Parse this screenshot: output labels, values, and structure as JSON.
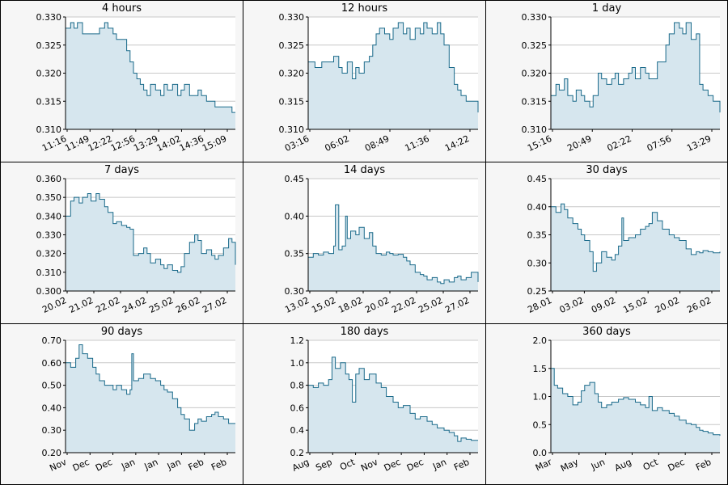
{
  "colors": {
    "line": "#1a6a8a",
    "fill": "#d6e6ee",
    "grid": "#c8c8c8",
    "panel_bg": "#f6f6f6",
    "plot_bg": "#ffffff"
  },
  "chart_data": [
    {
      "type": "area",
      "title": "4 hours",
      "ylim": [
        0.31,
        0.33
      ],
      "yticks": [
        "0.330",
        "0.325",
        "0.320",
        "0.315",
        "0.310"
      ],
      "yvals": [
        0.33,
        0.325,
        0.32,
        0.315,
        0.31
      ],
      "xticks": [
        "11:16",
        "11:49",
        "12:22",
        "12:56",
        "13:29",
        "14:02",
        "14:36",
        "15:09"
      ],
      "series": [
        {
          "x": [
            0,
            0.03,
            0.05,
            0.07,
            0.1,
            0.13,
            0.16,
            0.2,
            0.23,
            0.25,
            0.28,
            0.3,
            0.33,
            0.36,
            0.38,
            0.4,
            0.42,
            0.44,
            0.46,
            0.48,
            0.5,
            0.53,
            0.56,
            0.58,
            0.6,
            0.63,
            0.66,
            0.68,
            0.7,
            0.73,
            0.76,
            0.78,
            0.8,
            0.83,
            0.86,
            0.88,
            0.9,
            0.93,
            0.96,
            0.98,
            1.0
          ],
          "y": [
            0.328,
            0.329,
            0.328,
            0.329,
            0.327,
            0.327,
            0.327,
            0.328,
            0.329,
            0.328,
            0.327,
            0.326,
            0.326,
            0.324,
            0.322,
            0.32,
            0.319,
            0.318,
            0.317,
            0.316,
            0.318,
            0.317,
            0.316,
            0.318,
            0.317,
            0.318,
            0.316,
            0.317,
            0.318,
            0.316,
            0.316,
            0.317,
            0.316,
            0.315,
            0.315,
            0.314,
            0.314,
            0.314,
            0.314,
            0.313,
            0.313
          ]
        }
      ]
    },
    {
      "type": "area",
      "title": "12 hours",
      "ylim": [
        0.31,
        0.33
      ],
      "yticks": [
        "0.330",
        "0.325",
        "0.320",
        "0.315",
        "0.310"
      ],
      "yvals": [
        0.33,
        0.325,
        0.32,
        0.315,
        0.31
      ],
      "xticks": [
        "03:16",
        "06:02",
        "08:49",
        "11:36",
        "14:22"
      ],
      "series": [
        {
          "x": [
            0,
            0.04,
            0.08,
            0.12,
            0.15,
            0.18,
            0.2,
            0.23,
            0.26,
            0.28,
            0.3,
            0.33,
            0.36,
            0.38,
            0.4,
            0.42,
            0.45,
            0.48,
            0.5,
            0.53,
            0.56,
            0.58,
            0.6,
            0.63,
            0.66,
            0.68,
            0.7,
            0.73,
            0.76,
            0.78,
            0.8,
            0.83,
            0.86,
            0.88,
            0.9,
            0.93,
            0.96,
            1.0
          ],
          "y": [
            0.322,
            0.321,
            0.322,
            0.322,
            0.323,
            0.321,
            0.32,
            0.322,
            0.319,
            0.321,
            0.32,
            0.322,
            0.323,
            0.325,
            0.327,
            0.328,
            0.327,
            0.326,
            0.328,
            0.329,
            0.327,
            0.328,
            0.326,
            0.328,
            0.327,
            0.329,
            0.328,
            0.327,
            0.329,
            0.327,
            0.325,
            0.321,
            0.318,
            0.317,
            0.316,
            0.315,
            0.315,
            0.313
          ]
        }
      ]
    },
    {
      "type": "area",
      "title": "1 day",
      "ylim": [
        0.31,
        0.33
      ],
      "yticks": [
        "0.330",
        "0.325",
        "0.320",
        "0.315",
        "0.310"
      ],
      "yvals": [
        0.33,
        0.325,
        0.32,
        0.315,
        0.31
      ],
      "xticks": [
        "15:16",
        "20:49",
        "02:22",
        "07:56",
        "13:29"
      ],
      "series": [
        {
          "x": [
            0,
            0.03,
            0.05,
            0.08,
            0.1,
            0.13,
            0.15,
            0.18,
            0.2,
            0.23,
            0.25,
            0.28,
            0.3,
            0.33,
            0.36,
            0.38,
            0.4,
            0.43,
            0.46,
            0.48,
            0.5,
            0.53,
            0.56,
            0.58,
            0.6,
            0.63,
            0.66,
            0.68,
            0.7,
            0.73,
            0.76,
            0.78,
            0.8,
            0.83,
            0.86,
            0.88,
            0.9,
            0.93,
            0.96,
            1.0
          ],
          "y": [
            0.316,
            0.318,
            0.317,
            0.319,
            0.316,
            0.315,
            0.317,
            0.316,
            0.315,
            0.314,
            0.316,
            0.32,
            0.319,
            0.318,
            0.319,
            0.32,
            0.318,
            0.319,
            0.32,
            0.321,
            0.319,
            0.321,
            0.32,
            0.319,
            0.319,
            0.322,
            0.322,
            0.325,
            0.327,
            0.329,
            0.328,
            0.327,
            0.329,
            0.326,
            0.327,
            0.318,
            0.317,
            0.316,
            0.315,
            0.313
          ]
        }
      ]
    },
    {
      "type": "area",
      "title": "7 days",
      "ylim": [
        0.3,
        0.36
      ],
      "yticks": [
        "0.360",
        "0.350",
        "0.340",
        "0.330",
        "0.320",
        "0.310",
        "0.300"
      ],
      "yvals": [
        0.36,
        0.35,
        0.34,
        0.33,
        0.32,
        0.31,
        0.3
      ],
      "xticks": [
        "20.02",
        "21.02",
        "22.02",
        "24.02",
        "25.02",
        "26.02",
        "27.02"
      ],
      "series": [
        {
          "x": [
            0,
            0.03,
            0.05,
            0.08,
            0.1,
            0.13,
            0.15,
            0.18,
            0.2,
            0.23,
            0.25,
            0.28,
            0.3,
            0.33,
            0.36,
            0.38,
            0.4,
            0.43,
            0.46,
            0.48,
            0.5,
            0.53,
            0.56,
            0.58,
            0.6,
            0.63,
            0.66,
            0.68,
            0.7,
            0.73,
            0.76,
            0.78,
            0.8,
            0.83,
            0.86,
            0.88,
            0.9,
            0.93,
            0.96,
            0.98,
            1.0
          ],
          "y": [
            0.34,
            0.348,
            0.35,
            0.347,
            0.35,
            0.352,
            0.348,
            0.352,
            0.349,
            0.345,
            0.342,
            0.336,
            0.337,
            0.335,
            0.334,
            0.333,
            0.319,
            0.32,
            0.323,
            0.32,
            0.315,
            0.317,
            0.314,
            0.312,
            0.314,
            0.311,
            0.31,
            0.313,
            0.32,
            0.326,
            0.33,
            0.327,
            0.32,
            0.322,
            0.319,
            0.317,
            0.319,
            0.323,
            0.328,
            0.326,
            0.314
          ]
        }
      ]
    },
    {
      "type": "area",
      "title": "14 days",
      "ylim": [
        0.3,
        0.45
      ],
      "yticks": [
        "0.45",
        "0.40",
        "0.35",
        "0.30"
      ],
      "yvals": [
        0.45,
        0.4,
        0.35,
        0.3
      ],
      "xticks": [
        "13.02",
        "15.02",
        "18.02",
        "20.02",
        "22.02",
        "25.02",
        "27.02"
      ],
      "series": [
        {
          "x": [
            0,
            0.03,
            0.06,
            0.09,
            0.12,
            0.15,
            0.16,
            0.18,
            0.2,
            0.22,
            0.23,
            0.25,
            0.28,
            0.3,
            0.33,
            0.36,
            0.38,
            0.4,
            0.43,
            0.46,
            0.48,
            0.5,
            0.53,
            0.56,
            0.58,
            0.6,
            0.63,
            0.66,
            0.68,
            0.7,
            0.73,
            0.76,
            0.78,
            0.8,
            0.83,
            0.86,
            0.88,
            0.9,
            0.93,
            0.96,
            1.0
          ],
          "y": [
            0.345,
            0.35,
            0.348,
            0.352,
            0.35,
            0.36,
            0.415,
            0.355,
            0.36,
            0.4,
            0.37,
            0.38,
            0.375,
            0.385,
            0.37,
            0.378,
            0.36,
            0.35,
            0.348,
            0.352,
            0.35,
            0.348,
            0.349,
            0.345,
            0.34,
            0.335,
            0.325,
            0.322,
            0.32,
            0.315,
            0.318,
            0.312,
            0.31,
            0.315,
            0.312,
            0.318,
            0.32,
            0.315,
            0.318,
            0.325,
            0.312
          ]
        }
      ]
    },
    {
      "type": "area",
      "title": "30 days",
      "ylim": [
        0.25,
        0.45
      ],
      "yticks": [
        "0.45",
        "0.40",
        "0.35",
        "0.30",
        "0.25"
      ],
      "yvals": [
        0.45,
        0.4,
        0.35,
        0.3,
        0.25
      ],
      "xticks": [
        "28.01",
        "03.02",
        "09.02",
        "15.02",
        "20.02",
        "26.02"
      ],
      "series": [
        {
          "x": [
            0,
            0.03,
            0.06,
            0.08,
            0.1,
            0.13,
            0.16,
            0.18,
            0.2,
            0.23,
            0.25,
            0.27,
            0.3,
            0.33,
            0.36,
            0.38,
            0.4,
            0.42,
            0.43,
            0.46,
            0.5,
            0.53,
            0.56,
            0.58,
            0.6,
            0.63,
            0.66,
            0.7,
            0.73,
            0.76,
            0.8,
            0.83,
            0.86,
            0.88,
            0.9,
            0.93,
            0.96,
            1.0
          ],
          "y": [
            0.4,
            0.39,
            0.405,
            0.395,
            0.38,
            0.37,
            0.36,
            0.35,
            0.34,
            0.32,
            0.285,
            0.3,
            0.32,
            0.31,
            0.305,
            0.315,
            0.33,
            0.38,
            0.34,
            0.345,
            0.35,
            0.36,
            0.365,
            0.37,
            0.39,
            0.375,
            0.36,
            0.35,
            0.345,
            0.34,
            0.325,
            0.315,
            0.32,
            0.318,
            0.322,
            0.32,
            0.318,
            0.32
          ]
        }
      ]
    },
    {
      "type": "area",
      "title": "90 days",
      "ylim": [
        0.2,
        0.7
      ],
      "yticks": [
        "0.70",
        "0.60",
        "0.50",
        "0.40",
        "0.30",
        "0.20"
      ],
      "yvals": [
        0.7,
        0.6,
        0.5,
        0.4,
        0.3,
        0.2
      ],
      "xticks": [
        "Nov",
        "Dec",
        "Dec",
        "Jan",
        "Jan",
        "Jan",
        "Feb",
        "Feb"
      ],
      "series": [
        {
          "x": [
            0,
            0.03,
            0.06,
            0.08,
            0.1,
            0.13,
            0.16,
            0.18,
            0.2,
            0.23,
            0.26,
            0.28,
            0.3,
            0.33,
            0.36,
            0.38,
            0.39,
            0.4,
            0.43,
            0.46,
            0.5,
            0.53,
            0.56,
            0.58,
            0.6,
            0.63,
            0.66,
            0.68,
            0.7,
            0.73,
            0.76,
            0.78,
            0.8,
            0.83,
            0.86,
            0.88,
            0.9,
            0.93,
            0.96,
            1.0
          ],
          "y": [
            0.6,
            0.58,
            0.62,
            0.68,
            0.64,
            0.62,
            0.58,
            0.55,
            0.52,
            0.5,
            0.5,
            0.48,
            0.5,
            0.48,
            0.46,
            0.48,
            0.64,
            0.52,
            0.53,
            0.55,
            0.53,
            0.52,
            0.5,
            0.48,
            0.47,
            0.44,
            0.4,
            0.37,
            0.35,
            0.3,
            0.33,
            0.35,
            0.34,
            0.36,
            0.37,
            0.38,
            0.36,
            0.35,
            0.33,
            0.33
          ]
        }
      ]
    },
    {
      "type": "area",
      "title": "180 days",
      "ylim": [
        0.2,
        1.2
      ],
      "yticks": [
        "1.2",
        "1.0",
        "0.8",
        "0.6",
        "0.4",
        "0.2"
      ],
      "yvals": [
        1.2,
        1.0,
        0.8,
        0.6,
        0.4,
        0.2
      ],
      "xticks": [
        "Aug",
        "Sep",
        "Oct",
        "Nov",
        "Dec",
        "Dec",
        "Jan",
        "Feb"
      ],
      "series": [
        {
          "x": [
            0,
            0.03,
            0.06,
            0.09,
            0.12,
            0.14,
            0.16,
            0.19,
            0.22,
            0.24,
            0.26,
            0.28,
            0.3,
            0.33,
            0.36,
            0.4,
            0.43,
            0.46,
            0.5,
            0.53,
            0.56,
            0.6,
            0.63,
            0.66,
            0.7,
            0.73,
            0.76,
            0.8,
            0.83,
            0.86,
            0.88,
            0.9,
            0.93,
            0.96,
            1.0
          ],
          "y": [
            0.8,
            0.78,
            0.82,
            0.8,
            0.85,
            1.05,
            0.95,
            1.0,
            0.9,
            0.85,
            0.65,
            0.9,
            0.95,
            0.85,
            0.9,
            0.82,
            0.78,
            0.7,
            0.65,
            0.6,
            0.62,
            0.55,
            0.5,
            0.52,
            0.48,
            0.45,
            0.42,
            0.4,
            0.38,
            0.35,
            0.3,
            0.33,
            0.32,
            0.31,
            0.31
          ]
        }
      ]
    },
    {
      "type": "area",
      "title": "360 days",
      "ylim": [
        0.0,
        2.0
      ],
      "yticks": [
        "2.0",
        "1.5",
        "1.0",
        "0.5",
        "0.0"
      ],
      "yvals": [
        2.0,
        1.5,
        1.0,
        0.5,
        0.0
      ],
      "xticks": [
        "Mar",
        "May",
        "Jun",
        "Aug",
        "Oct",
        "Dec",
        "Feb"
      ],
      "series": [
        {
          "x": [
            0,
            0.02,
            0.04,
            0.07,
            0.1,
            0.13,
            0.16,
            0.18,
            0.2,
            0.23,
            0.26,
            0.28,
            0.3,
            0.33,
            0.36,
            0.4,
            0.43,
            0.46,
            0.5,
            0.53,
            0.56,
            0.58,
            0.6,
            0.63,
            0.66,
            0.7,
            0.73,
            0.76,
            0.8,
            0.83,
            0.86,
            0.88,
            0.9,
            0.93,
            0.96,
            1.0
          ],
          "y": [
            1.5,
            1.2,
            1.15,
            1.05,
            1.0,
            0.85,
            0.9,
            1.1,
            1.2,
            1.25,
            1.05,
            0.9,
            0.8,
            0.85,
            0.9,
            0.95,
            0.98,
            0.95,
            0.9,
            0.85,
            0.8,
            1.0,
            0.75,
            0.8,
            0.75,
            0.7,
            0.65,
            0.58,
            0.52,
            0.5,
            0.45,
            0.4,
            0.38,
            0.35,
            0.32,
            0.3
          ]
        }
      ]
    }
  ]
}
